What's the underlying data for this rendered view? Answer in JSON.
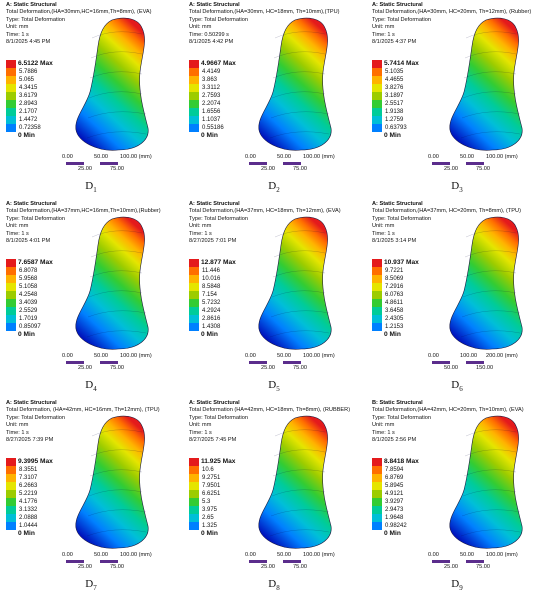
{
  "colors": [
    "#e41a1c",
    "#ff6f00",
    "#ffb300",
    "#e5e500",
    "#9ccc00",
    "#33cc33",
    "#00cc99",
    "#00bfd8",
    "#0080ff",
    "#0000c8"
  ],
  "panels": [
    {
      "title": "A: Static Structural",
      "line2": "Total Deformation,(HA=30mm,HC=16mm,Th=8mm), (EVA)",
      "type": "Type: Total Deformation",
      "unit": "Unit: mm",
      "time": "Time: 1 s",
      "date": "8/1/2025 4:45 PM",
      "max": "6.5122 Max",
      "values": [
        "5.7886",
        "5.065",
        "4.3415",
        "3.6179",
        "2.8943",
        "2.1707",
        "1.4472",
        "0.72358"
      ],
      "min": "0 Min",
      "scale_top": [
        "0.00",
        "50.00",
        "100.00 (mm)"
      ],
      "scale_bottom": [
        "25.00",
        "75.00"
      ],
      "label": "D",
      "label_sub": "1"
    },
    {
      "title": "A: Static Structural",
      "line2": "Total Deformation,(HA=30mm, HC=18mm, Th=10mm),(TPU)",
      "type": "Type: Total Deformation",
      "unit": "Unit: mm",
      "time": "Time: 0.50299 s",
      "date": "8/1/2025 4:42 PM",
      "max": "4.9667 Max",
      "values": [
        "4.4149",
        "3.863",
        "3.3112",
        "2.7593",
        "2.2074",
        "1.6556",
        "1.1037",
        "0.55186"
      ],
      "min": "0 Min",
      "scale_top": [
        "0.00",
        "50.00",
        "100.00 (mm)"
      ],
      "scale_bottom": [
        "25.00",
        "75.00"
      ],
      "label": "D",
      "label_sub": "2"
    },
    {
      "title": "A: Static Structural",
      "line2": "Total Deformation,(HA=30mm, HC=20mm, Th=12mm), (Rubber)",
      "type": "Type: Total Deformation",
      "unit": "Unit: mm",
      "time": "Time: 1 s",
      "date": "8/1/2025 4:37 PM",
      "max": "5.7414 Max",
      "values": [
        "5.1035",
        "4.4655",
        "3.8276",
        "3.1897",
        "2.5517",
        "1.9138",
        "1.2759",
        "0.63793"
      ],
      "min": "0 Min",
      "scale_top": [
        "0.00",
        "50.00",
        "100.00 (mm)"
      ],
      "scale_bottom": [
        "25.00",
        "75.00"
      ],
      "label": "D",
      "label_sub": "3"
    },
    {
      "title": "A: Static Structural",
      "line2": "Total Deformation,(HA=37mm,HC=16mm,Th=10mm),(Rubber)",
      "type": "Type: Total Deformation",
      "unit": "Unit: mm",
      "time": "Time: 1 s",
      "date": "8/1/2025 4:01 PM",
      "max": "7.6587 Max",
      "values": [
        "6.8078",
        "5.9568",
        "5.1058",
        "4.2548",
        "3.4039",
        "2.5529",
        "1.7019",
        "0.85097"
      ],
      "min": "0 Min",
      "scale_top": [
        "0.00",
        "50.00",
        "100.00 (mm)"
      ],
      "scale_bottom": [
        "25.00",
        "75.00"
      ],
      "label": "D",
      "label_sub": "4"
    },
    {
      "title": "A: Static Structural",
      "line2": "Total Deformation,(HA=37mm, HC=18mm, Th=12mm), (EVA)",
      "type": "Type: Total Deformation",
      "unit": "Unit: mm",
      "time": "Time: 1 s",
      "date": "8/27/2025 7:01 PM",
      "max": "12.877 Max",
      "values": [
        "11.446",
        "10.016",
        "8.5848",
        "7.154",
        "5.7232",
        "4.2924",
        "2.8616",
        "1.4308"
      ],
      "min": "0 Min",
      "scale_top": [
        "0.00",
        "50.00",
        "100.00 (mm)"
      ],
      "scale_bottom": [
        "25.00",
        "75.00"
      ],
      "label": "D",
      "label_sub": "5"
    },
    {
      "title": "A: Static Structural",
      "line2": "Total Deformation,(HA=37mm, HC=20mm, Th=8mm), (TPU)",
      "type": "Type: Total Deformation",
      "unit": "Unit: mm",
      "time": "Time: 1 s",
      "date": "8/1/2025 3:14 PM",
      "max": "10.937 Max",
      "values": [
        "9.7221",
        "8.5069",
        "7.2916",
        "6.0763",
        "4.8611",
        "3.6458",
        "2.4305",
        "1.2153"
      ],
      "min": "0 Min",
      "scale_top": [
        "0.00",
        "100.00",
        "200.00 (mm)"
      ],
      "scale_bottom": [
        "50.00",
        "150.00"
      ],
      "label": "D",
      "label_sub": "6"
    },
    {
      "title": "A: Static Structural",
      "line2": "Total Deformation, (HA=42mm, HC=16mm, Th=12mm), (TPU)",
      "type": "Type: Total Deformation",
      "unit": "Unit: mm",
      "time": "Time: 1 s",
      "date": "8/27/2025 7:39 PM",
      "max": "9.3995 Max",
      "values": [
        "8.3551",
        "7.3107",
        "6.2663",
        "5.2219",
        "4.1776",
        "3.1332",
        "2.0888",
        "1.0444"
      ],
      "min": "0 Min",
      "scale_top": [
        "0.00",
        "50.00",
        "100.00 (mm)"
      ],
      "scale_bottom": [
        "25.00",
        "75.00"
      ],
      "label": "D",
      "label_sub": "7"
    },
    {
      "title": "A: Static Structural",
      "line2": "Total Deformation (HA=42mm, HC=18mm, Th=8mm), (RUBBER)",
      "type": "Type: Total Deformation",
      "unit": "Unit: mm",
      "time": "Time: 1 s",
      "date": "8/27/2025 7:45 PM",
      "max": "11.925 Max",
      "values": [
        "10.6",
        "9.2751",
        "7.9501",
        "6.6251",
        "5.3",
        "3.975",
        "2.65",
        "1.325"
      ],
      "min": "0 Min",
      "scale_top": [
        "0.00",
        "50.00",
        "100.00 (mm)"
      ],
      "scale_bottom": [
        "25.00",
        "75.00"
      ],
      "label": "D",
      "label_sub": "8"
    },
    {
      "title": "B: Static Structural",
      "line2": "Total Deformation,(HA=42mm, HC=20mm, Th=10mm), (EVA)",
      "type": "Type: Total Deformation",
      "unit": "Unit: mm",
      "time": "Time: 1 s",
      "date": "8/1/2025 2:56 PM",
      "max": "8.8418 Max",
      "values": [
        "7.8594",
        "6.8769",
        "5.8945",
        "4.9121",
        "3.9297",
        "2.9473",
        "1.9648",
        "0.98242"
      ],
      "min": "0 Min",
      "scale_top": [
        "0.00",
        "50.00",
        "100.00 (mm)"
      ],
      "scale_bottom": [
        "25.00",
        "75.00"
      ],
      "label": "D",
      "label_sub": "9"
    }
  ]
}
